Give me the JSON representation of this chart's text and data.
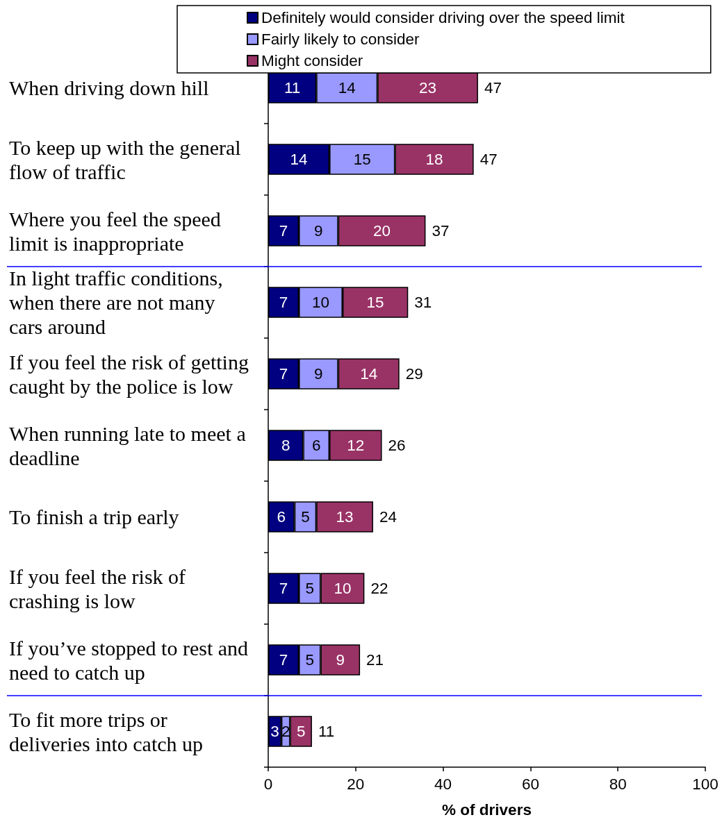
{
  "chart_data": {
    "type": "bar",
    "orientation": "horizontal",
    "stacked": true,
    "categories": [
      "When driving down hill",
      "To keep up with the general flow of traffic",
      "Where you feel the speed limit is inappropriate",
      "In light traffic conditions, when there are not many cars around",
      "If you feel the risk of getting caught by the police is low",
      "When running late to meet a deadline",
      "To finish a trip early",
      "If you feel the risk of crashing is low",
      "If you’ve stopped to rest and need to catch up",
      "To fit more trips or deliveries into catch up"
    ],
    "series": [
      {
        "name": "Definitely would consider driving over the speed limit",
        "color": "#000080",
        "values": [
          11,
          14,
          7,
          7,
          7,
          8,
          6,
          7,
          7,
          3
        ]
      },
      {
        "name": "Fairly likely to consider",
        "color": "#9999ff",
        "values": [
          14,
          15,
          9,
          10,
          9,
          6,
          5,
          5,
          5,
          2
        ]
      },
      {
        "name": "Might consider",
        "color": "#993366",
        "values": [
          23,
          18,
          20,
          15,
          14,
          12,
          13,
          10,
          9,
          5
        ]
      }
    ],
    "xlabel": "% of drivers",
    "xlim": [
      0,
      100
    ],
    "xticks": [
      0,
      20,
      40,
      60,
      80,
      100
    ],
    "data_labels": true,
    "totals": [
      "47",
      "47",
      "37",
      "31",
      "29",
      "26",
      "24",
      "22",
      "21",
      "11"
    ],
    "legend": "top",
    "grid": false
  }
}
